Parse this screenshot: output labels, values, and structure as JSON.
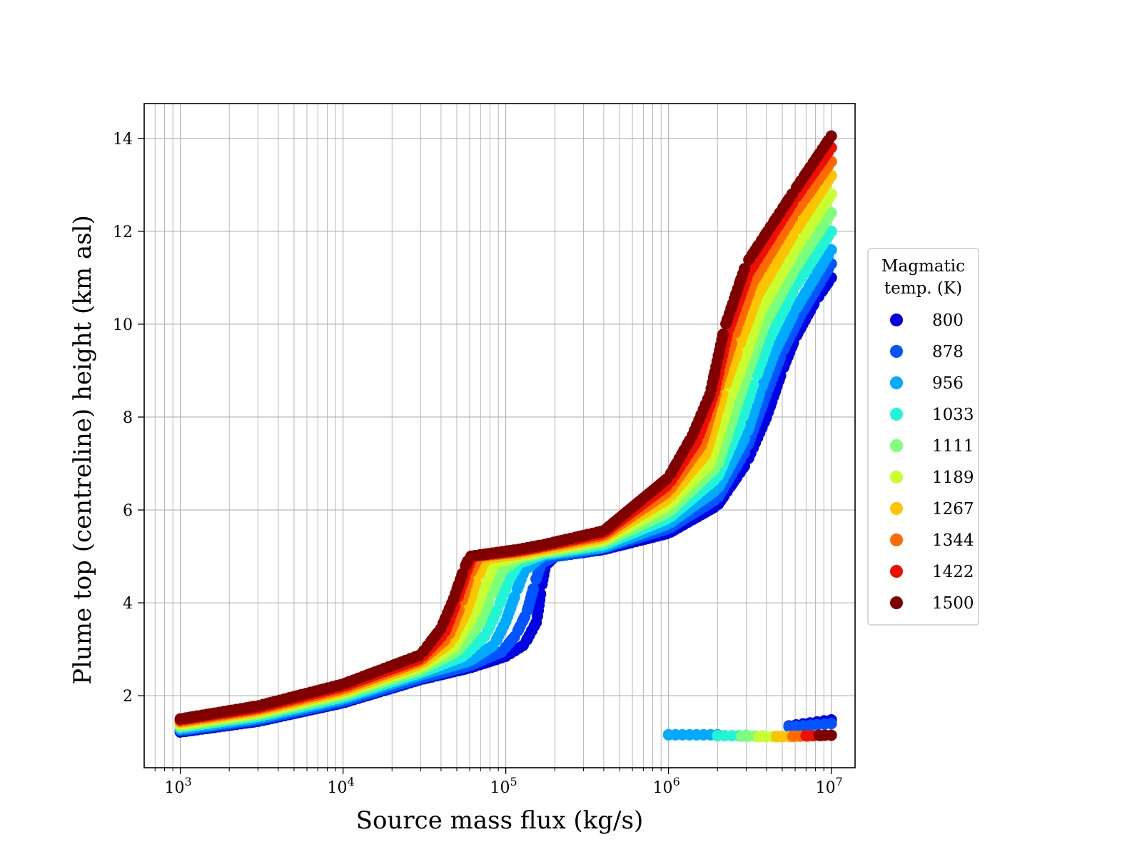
{
  "chart_data": {
    "type": "scatter",
    "title": "",
    "xlabel": "Source mass flux (kg/s)",
    "ylabel": "Plume top (centreline) height (km asl)",
    "xscale": "log",
    "xlim": [
      600,
      14000000
    ],
    "ylim": [
      0.45,
      14.75
    ],
    "xticks": [
      {
        "value": 1000,
        "base": "10",
        "exp": "3"
      },
      {
        "value": 10000,
        "base": "10",
        "exp": "4"
      },
      {
        "value": 100000,
        "base": "10",
        "exp": "5"
      },
      {
        "value": 1000000,
        "base": "10",
        "exp": "6"
      },
      {
        "value": 10000000,
        "base": "10",
        "exp": "7"
      }
    ],
    "yticks": [
      {
        "value": 2,
        "label": "2"
      },
      {
        "value": 4,
        "label": "4"
      },
      {
        "value": 6,
        "label": "6"
      },
      {
        "value": 8,
        "label": "8"
      },
      {
        "value": 10,
        "label": "10"
      },
      {
        "value": 12,
        "label": "12"
      },
      {
        "value": 14,
        "label": "14"
      }
    ],
    "grid": true,
    "legend": {
      "title_line1": "Magmatic",
      "title_line2": "temp. (K)",
      "placement": "outside-right"
    },
    "series": [
      {
        "name": "800",
        "color": "#0000e6",
        "main": [
          [
            1000,
            1.22
          ],
          [
            3000,
            1.45
          ],
          [
            10000,
            1.85
          ],
          [
            30000,
            2.35
          ],
          [
            60000,
            2.6
          ],
          [
            100000,
            2.85
          ],
          [
            130000,
            3.1
          ],
          [
            155000,
            3.6
          ],
          [
            165000,
            4.3
          ],
          [
            175000,
            4.8
          ],
          [
            200000,
            5.0
          ],
          [
            400000,
            5.15
          ],
          [
            1000000,
            5.5
          ],
          [
            2000000,
            6.1
          ],
          [
            3000000,
            7.0
          ],
          [
            4000000,
            8.0
          ],
          [
            5000000,
            9.0
          ],
          [
            6000000,
            9.7
          ],
          [
            8000000,
            10.5
          ],
          [
            10000000,
            11.0
          ]
        ],
        "low_branch": [
          [
            5500000,
            1.35
          ],
          [
            10000000,
            1.48
          ]
        ]
      },
      {
        "name": "878",
        "color": "#0055ff",
        "main": [
          [
            1000,
            1.25
          ],
          [
            3000,
            1.48
          ],
          [
            10000,
            1.88
          ],
          [
            30000,
            2.38
          ],
          [
            60000,
            2.65
          ],
          [
            95000,
            2.95
          ],
          [
            115000,
            3.3
          ],
          [
            135000,
            3.8
          ],
          [
            150000,
            4.4
          ],
          [
            165000,
            4.85
          ],
          [
            200000,
            5.0
          ],
          [
            400000,
            5.18
          ],
          [
            1000000,
            5.6
          ],
          [
            2000000,
            6.25
          ],
          [
            3000000,
            7.3
          ],
          [
            4000000,
            8.5
          ],
          [
            5000000,
            9.4
          ],
          [
            6500000,
            10.2
          ],
          [
            10000000,
            11.3
          ]
        ],
        "low_branch": [
          [
            5500000,
            1.33
          ],
          [
            10000000,
            1.4
          ]
        ]
      },
      {
        "name": "956",
        "color": "#00aaff",
        "main": [
          [
            1000,
            1.28
          ],
          [
            3000,
            1.52
          ],
          [
            10000,
            1.93
          ],
          [
            30000,
            2.45
          ],
          [
            60000,
            2.75
          ],
          [
            85000,
            3.1
          ],
          [
            100000,
            3.6
          ],
          [
            115000,
            4.2
          ],
          [
            130000,
            4.7
          ],
          [
            170000,
            5.02
          ],
          [
            400000,
            5.2
          ],
          [
            1000000,
            5.7
          ],
          [
            2000000,
            6.45
          ],
          [
            3000000,
            7.6
          ],
          [
            3700000,
            8.6
          ],
          [
            4500000,
            9.4
          ],
          [
            6000000,
            10.3
          ],
          [
            10000000,
            11.6
          ]
        ],
        "low_branch": [
          [
            1000000,
            1.16
          ],
          [
            2000000,
            1.16
          ]
        ]
      },
      {
        "name": "1033",
        "color": "#22f5d5",
        "main": [
          [
            1000,
            1.32
          ],
          [
            3000,
            1.56
          ],
          [
            10000,
            1.97
          ],
          [
            30000,
            2.5
          ],
          [
            55000,
            2.85
          ],
          [
            75000,
            3.3
          ],
          [
            90000,
            3.9
          ],
          [
            105000,
            4.5
          ],
          [
            120000,
            4.85
          ],
          [
            170000,
            5.05
          ],
          [
            400000,
            5.25
          ],
          [
            1000000,
            5.82
          ],
          [
            2000000,
            6.7
          ],
          [
            2800000,
            7.9
          ],
          [
            3400000,
            8.8
          ],
          [
            4200000,
            9.7
          ],
          [
            6000000,
            10.8
          ],
          [
            10000000,
            12.0
          ]
        ],
        "low_branch": [
          [
            2000000,
            1.14
          ],
          [
            3000000,
            1.14
          ]
        ]
      },
      {
        "name": "1111",
        "color": "#7dff7a",
        "main": [
          [
            1000,
            1.35
          ],
          [
            3000,
            1.6
          ],
          [
            10000,
            2.02
          ],
          [
            30000,
            2.56
          ],
          [
            50000,
            2.95
          ],
          [
            68000,
            3.5
          ],
          [
            80000,
            4.1
          ],
          [
            95000,
            4.7
          ],
          [
            120000,
            4.95
          ],
          [
            170000,
            5.08
          ],
          [
            400000,
            5.3
          ],
          [
            1000000,
            5.95
          ],
          [
            2000000,
            6.95
          ],
          [
            2600000,
            8.2
          ],
          [
            3100000,
            9.0
          ],
          [
            3900000,
            10.0
          ],
          [
            6000000,
            11.2
          ],
          [
            10000000,
            12.4
          ]
        ],
        "low_branch": [
          [
            2800000,
            1.13
          ],
          [
            3800000,
            1.13
          ]
        ]
      },
      {
        "name": "1189",
        "color": "#c8ff30",
        "main": [
          [
            1000,
            1.38
          ],
          [
            3000,
            1.63
          ],
          [
            10000,
            2.06
          ],
          [
            30000,
            2.62
          ],
          [
            48000,
            3.05
          ],
          [
            63000,
            3.7
          ],
          [
            73000,
            4.3
          ],
          [
            85000,
            4.85
          ],
          [
            120000,
            5.0
          ],
          [
            170000,
            5.12
          ],
          [
            400000,
            5.35
          ],
          [
            1000000,
            6.1
          ],
          [
            1800000,
            7.0
          ],
          [
            2400000,
            8.4
          ],
          [
            2900000,
            9.2
          ],
          [
            3700000,
            10.3
          ],
          [
            6000000,
            11.6
          ],
          [
            10000000,
            12.8
          ]
        ],
        "low_branch": [
          [
            3600000,
            1.12
          ],
          [
            4800000,
            1.12
          ]
        ]
      },
      {
        "name": "1267",
        "color": "#ffc400",
        "main": [
          [
            1000,
            1.42
          ],
          [
            3000,
            1.67
          ],
          [
            10000,
            2.1
          ],
          [
            30000,
            2.68
          ],
          [
            46000,
            3.15
          ],
          [
            58000,
            3.85
          ],
          [
            66000,
            4.5
          ],
          [
            75000,
            4.95
          ],
          [
            120000,
            5.05
          ],
          [
            170000,
            5.15
          ],
          [
            400000,
            5.4
          ],
          [
            1000000,
            6.25
          ],
          [
            1700000,
            7.2
          ],
          [
            2200000,
            8.6
          ],
          [
            2700000,
            9.5
          ],
          [
            3500000,
            10.6
          ],
          [
            6000000,
            12.0
          ],
          [
            10000000,
            13.2
          ]
        ],
        "low_branch": [
          [
            4600000,
            1.12
          ],
          [
            6000000,
            1.12
          ]
        ]
      },
      {
        "name": "1344",
        "color": "#ff6a00",
        "main": [
          [
            1000,
            1.45
          ],
          [
            3000,
            1.71
          ],
          [
            10000,
            2.15
          ],
          [
            30000,
            2.75
          ],
          [
            44000,
            3.25
          ],
          [
            53000,
            3.95
          ],
          [
            60000,
            4.6
          ],
          [
            68000,
            5.0
          ],
          [
            120000,
            5.1
          ],
          [
            170000,
            5.2
          ],
          [
            400000,
            5.45
          ],
          [
            1000000,
            6.4
          ],
          [
            1600000,
            7.4
          ],
          [
            2000000,
            8.6
          ],
          [
            2500000,
            9.7
          ],
          [
            3300000,
            10.9
          ],
          [
            6000000,
            12.4
          ],
          [
            10000000,
            13.5
          ]
        ],
        "low_branch": [
          [
            5800000,
            1.13
          ],
          [
            7200000,
            1.13
          ]
        ]
      },
      {
        "name": "1422",
        "color": "#f00e00",
        "main": [
          [
            1000,
            1.48
          ],
          [
            3000,
            1.74
          ],
          [
            10000,
            2.2
          ],
          [
            30000,
            2.8
          ],
          [
            42000,
            3.35
          ],
          [
            50000,
            4.05
          ],
          [
            57000,
            4.65
          ],
          [
            62000,
            5.0
          ],
          [
            120000,
            5.12
          ],
          [
            170000,
            5.22
          ],
          [
            400000,
            5.5
          ],
          [
            1000000,
            6.55
          ],
          [
            1500000,
            7.5
          ],
          [
            1900000,
            8.5
          ],
          [
            2300000,
            9.8
          ],
          [
            3100000,
            11.1
          ],
          [
            6000000,
            12.7
          ],
          [
            10000000,
            13.8
          ]
        ],
        "low_branch": [
          [
            7000000,
            1.14
          ],
          [
            8600000,
            1.14
          ]
        ]
      },
      {
        "name": "1500",
        "color": "#800000",
        "main": [
          [
            1000,
            1.5
          ],
          [
            3000,
            1.78
          ],
          [
            10000,
            2.25
          ],
          [
            30000,
            2.88
          ],
          [
            40000,
            3.45
          ],
          [
            48000,
            4.1
          ],
          [
            55000,
            4.7
          ],
          [
            60000,
            5.0
          ],
          [
            120000,
            5.15
          ],
          [
            170000,
            5.25
          ],
          [
            400000,
            5.55
          ],
          [
            1000000,
            6.7
          ],
          [
            1400000,
            7.6
          ],
          [
            1800000,
            8.5
          ],
          [
            2200000,
            9.9
          ],
          [
            3000000,
            11.3
          ],
          [
            6000000,
            12.9
          ],
          [
            10000000,
            14.05
          ]
        ],
        "low_branch": [
          [
            8400000,
            1.15
          ],
          [
            10000000,
            1.15
          ]
        ]
      }
    ]
  }
}
